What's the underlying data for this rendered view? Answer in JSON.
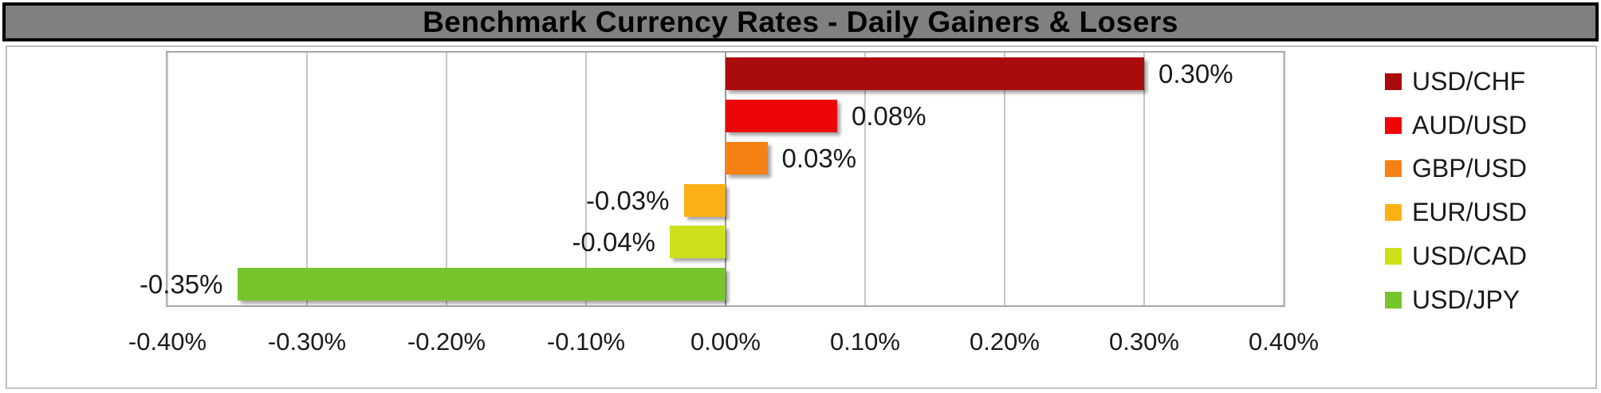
{
  "title": "Benchmark Currency Rates - Daily Gainers & Losers",
  "colors": {
    "title_bar_bg": "#808080",
    "title_text": "#000000",
    "chart_border": "#bfbfbf",
    "plot_border": "#a6a6a6",
    "gridline": "#c6c6c6",
    "zero_axis": "#9a9a9a",
    "label_text": "#1a1a1a"
  },
  "chart_data": {
    "type": "bar",
    "orientation": "horizontal",
    "title": "Benchmark Currency Rates - Daily Gainers & Losers",
    "xlabel": "",
    "ylabel": "",
    "xlim": [
      -0.4,
      0.4
    ],
    "grid": true,
    "legend_position": "right",
    "x_ticks": [
      "-0.40%",
      "-0.30%",
      "-0.20%",
      "-0.10%",
      "0.00%",
      "0.10%",
      "0.20%",
      "0.30%",
      "0.40%"
    ],
    "series": [
      {
        "name": "USD/CHF",
        "value": 0.3,
        "label": "0.30%",
        "color": "#aa0b0d"
      },
      {
        "name": "AUD/USD",
        "value": 0.08,
        "label": "0.08%",
        "color": "#ee0505"
      },
      {
        "name": "GBP/USD",
        "value": 0.03,
        "label": "0.03%",
        "color": "#f58114"
      },
      {
        "name": "EUR/USD",
        "value": -0.03,
        "label": "-0.03%",
        "color": "#fbb116"
      },
      {
        "name": "USD/CAD",
        "value": -0.04,
        "label": "-0.04%",
        "color": "#cee01b"
      },
      {
        "name": "USD/JPY",
        "value": -0.35,
        "label": "-0.35%",
        "color": "#76c52c"
      }
    ]
  }
}
